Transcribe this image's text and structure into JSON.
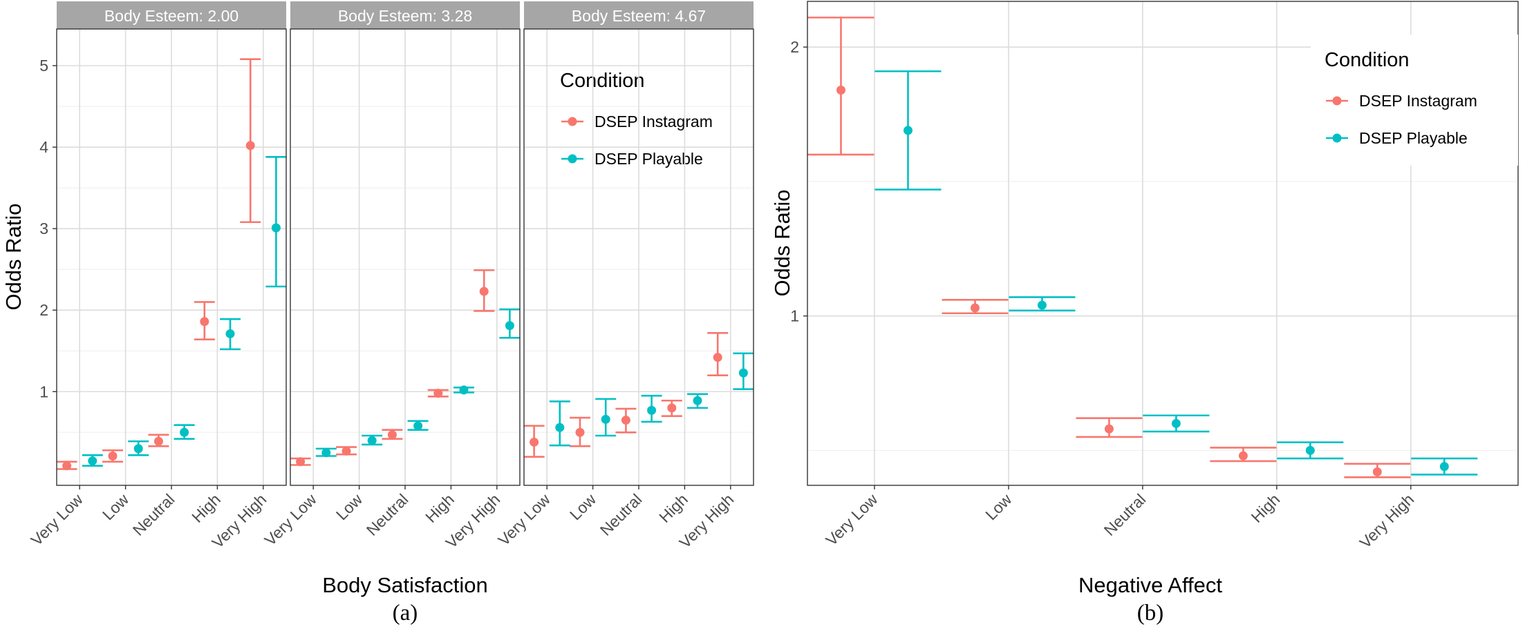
{
  "chart_data": [
    {
      "type": "scatter",
      "subplot_label": "(a)",
      "xlabel": "Body Satisfaction",
      "ylabel": "Odds Ratio",
      "legend_title": "Condition",
      "legend_placement": "inside-top-right of third facet",
      "categories": [
        "Very Low",
        "Low",
        "Neutral",
        "High",
        "Very High"
      ],
      "y_ticks": [
        1,
        2,
        3,
        4,
        5
      ],
      "ylim": [
        -0.15,
        5.45
      ],
      "colors": {
        "DSEP Instagram": "#F8766D",
        "DSEP Playable": "#00BFC4"
      },
      "facets": [
        {
          "strip": "Body Esteem: 2.00",
          "series": [
            {
              "name": "DSEP Instagram",
              "y": [
                0.09,
                0.21,
                0.39,
                1.86,
                4.02
              ],
              "lo": [
                0.05,
                0.14,
                0.33,
                1.64,
                3.08
              ],
              "hi": [
                0.14,
                0.28,
                0.47,
                2.1,
                5.08
              ]
            },
            {
              "name": "DSEP Playable",
              "y": [
                0.15,
                0.3,
                0.5,
                1.71,
                3.01
              ],
              "lo": [
                0.09,
                0.22,
                0.42,
                1.52,
                2.29
              ],
              "hi": [
                0.22,
                0.39,
                0.59,
                1.89,
                3.88
              ]
            }
          ]
        },
        {
          "strip": "Body Esteem: 3.28",
          "series": [
            {
              "name": "DSEP Instagram",
              "y": [
                0.14,
                0.27,
                0.47,
                0.98,
                2.23
              ],
              "lo": [
                0.1,
                0.23,
                0.42,
                0.94,
                1.99
              ],
              "hi": [
                0.18,
                0.32,
                0.53,
                1.02,
                2.49
              ]
            },
            {
              "name": "DSEP Playable",
              "y": [
                0.25,
                0.4,
                0.58,
                1.02,
                1.81
              ],
              "lo": [
                0.21,
                0.35,
                0.53,
                0.99,
                1.66
              ],
              "hi": [
                0.3,
                0.46,
                0.64,
                1.05,
                2.01
              ]
            }
          ]
        },
        {
          "strip": "Body Esteem: 4.67",
          "series": [
            {
              "name": "DSEP Instagram",
              "y": [
                0.38,
                0.5,
                0.65,
                0.8,
                1.42
              ],
              "lo": [
                0.2,
                0.33,
                0.5,
                0.7,
                1.2
              ],
              "hi": [
                0.58,
                0.68,
                0.79,
                0.89,
                1.72
              ]
            },
            {
              "name": "DSEP Playable",
              "y": [
                0.56,
                0.66,
                0.77,
                0.89,
                1.23
              ],
              "lo": [
                0.34,
                0.46,
                0.63,
                0.8,
                1.03
              ],
              "hi": [
                0.88,
                0.91,
                0.95,
                0.97,
                1.47
              ]
            }
          ]
        }
      ]
    },
    {
      "type": "scatter",
      "subplot_label": "(b)",
      "xlabel": "Negative Affect",
      "ylabel": "Odds Ratio",
      "legend_title": "Condition",
      "legend_placement": "inside-top-right",
      "categories": [
        "Very Low",
        "Low",
        "Neutral",
        "High",
        "Very High"
      ],
      "y_ticks": [
        1,
        2
      ],
      "ylim": [
        0.37,
        2.17
      ],
      "colors": {
        "DSEP Instagram": "#F8766D",
        "DSEP Playable": "#00BFC4"
      },
      "series": [
        {
          "name": "DSEP Instagram",
          "y": [
            1.84,
            1.03,
            0.58,
            0.48,
            0.42
          ],
          "lo": [
            1.6,
            1.01,
            0.55,
            0.46,
            0.4
          ],
          "hi": [
            2.11,
            1.06,
            0.62,
            0.51,
            0.45
          ]
        },
        {
          "name": "DSEP Playable",
          "y": [
            1.69,
            1.04,
            0.6,
            0.5,
            0.44
          ],
          "lo": [
            1.47,
            1.02,
            0.57,
            0.47,
            0.41
          ],
          "hi": [
            1.91,
            1.07,
            0.63,
            0.53,
            0.47
          ]
        }
      ]
    }
  ]
}
